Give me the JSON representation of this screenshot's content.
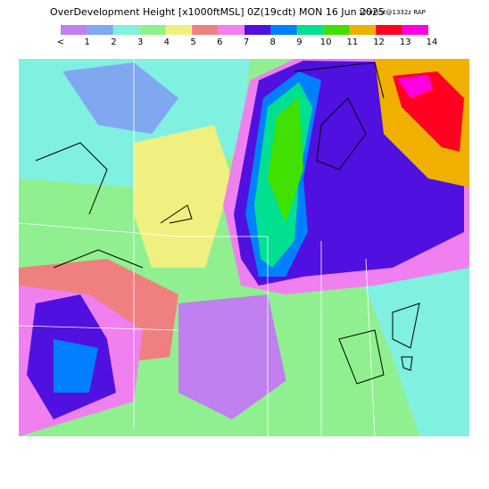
{
  "header": {
    "title": "OverDevelopment Height [x1000ftMSL] 0Z(19cdt) MON 16 Jun 2025",
    "subtitle": "12hrFcst@1332z RAP"
  },
  "legend": {
    "labels": [
      "<",
      "1",
      "2",
      "3",
      "4",
      "5",
      "6",
      "7",
      "8",
      "9",
      "10",
      "11",
      "12",
      "13",
      "14"
    ],
    "colors": [
      "#c080f0",
      "#80a8f0",
      "#80f0e0",
      "#90f090",
      "#f0f080",
      "#f08080",
      "#f080f0",
      "#5010e0",
      "#0080ff",
      "#00e090",
      "#40e000",
      "#f0b000",
      "#ff0020",
      "#ff00e0"
    ]
  }
}
